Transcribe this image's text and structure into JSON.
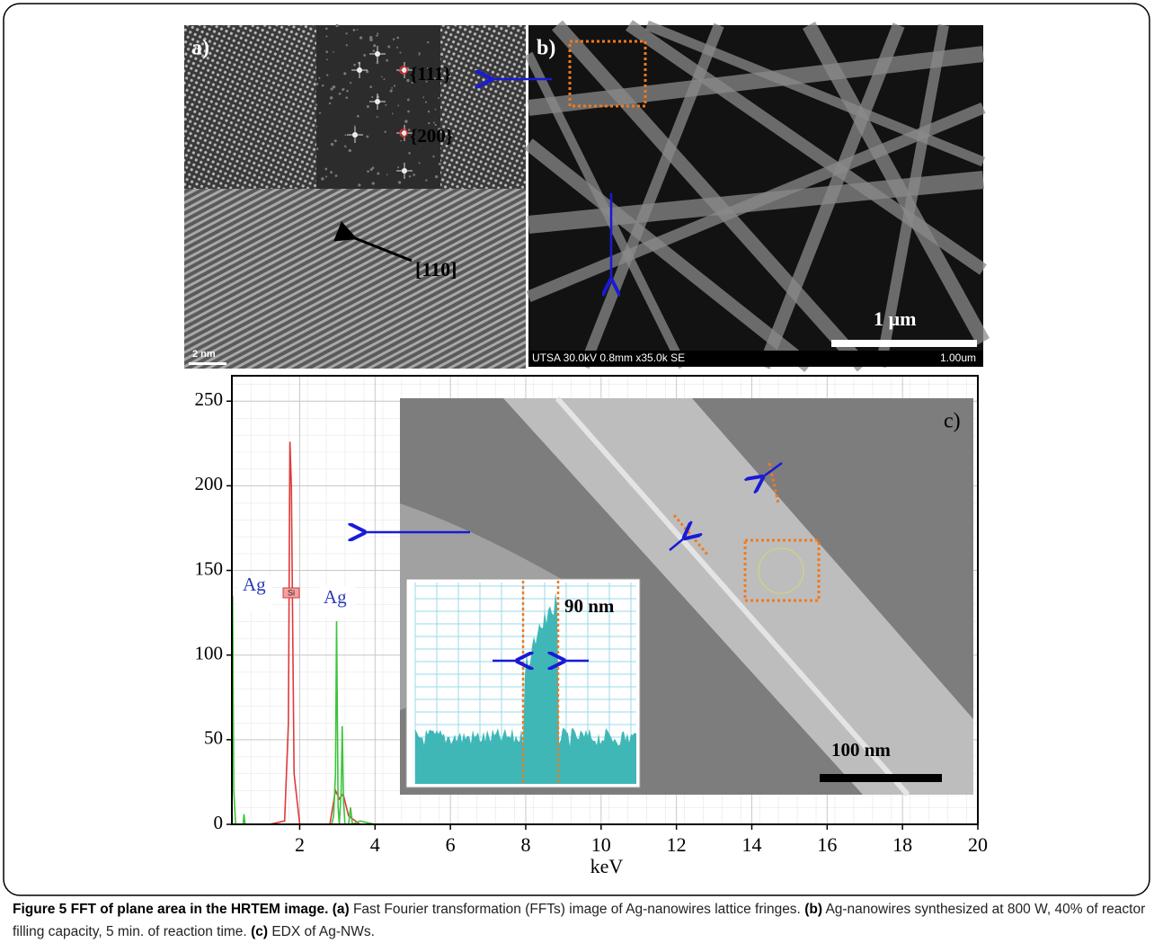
{
  "panels": {
    "a": {
      "label": "a)",
      "spot_1": "{111}",
      "spot_2": "{200}",
      "direction": "[110]",
      "scale": "2 nm"
    },
    "b": {
      "label": "b)",
      "scale": "1 µm",
      "info": "UTSA 30.0kV 0.8mm x35.0k SE",
      "scale_field": "1.00um"
    },
    "c": {
      "label": "c)",
      "width": "90 nm",
      "scale": "100 nm",
      "peak_1": "Ag",
      "peak_2": "Ag",
      "peak_si": "Si"
    }
  },
  "chart_data": {
    "type": "line",
    "x_label": "keV",
    "xlim": [
      0.2,
      20
    ],
    "ylim": [
      0,
      265
    ],
    "xticks": [
      2,
      4,
      6,
      8,
      10,
      12,
      14,
      16,
      18,
      20
    ],
    "yticks": [
      0,
      50,
      100,
      150,
      200,
      250
    ],
    "grid": true,
    "series": [
      {
        "name": "Si",
        "color": "#e03a3a",
        "x": [
          1.2,
          1.6,
          1.7,
          1.74,
          1.78,
          1.85,
          2.0,
          2.8,
          2.95,
          3.05,
          3.15,
          3.3,
          3.6,
          12
        ],
        "values": [
          0,
          2,
          60,
          226,
          200,
          30,
          0,
          0,
          20,
          15,
          18,
          5,
          0,
          0
        ]
      },
      {
        "name": "Ag",
        "color": "#3cc43c",
        "x": [
          0.2,
          0.22,
          0.25,
          0.3,
          0.5,
          0.52,
          0.55,
          0.6,
          2.85,
          2.9,
          2.95,
          2.98,
          3.02,
          3.05,
          3.1,
          3.13,
          3.16,
          3.2,
          3.3,
          3.35,
          3.4,
          3.6,
          4
        ],
        "values": [
          0,
          135,
          20,
          0,
          0,
          6,
          0,
          0,
          0,
          5,
          30,
          120,
          10,
          0,
          20,
          58,
          15,
          0,
          0,
          10,
          0,
          2,
          0
        ]
      }
    ]
  },
  "caption": {
    "title": "Figure 5 FFT of plane area in the HRTEM image.",
    "a_label": "(a)",
    "a_text": "Fast Fourier transformation (FFTs) image of Ag-nanowires lattice fringes.",
    "b_label": "(b)",
    "b_text": "Ag-nanowires synthesized at 800 W, 40% of reactor filling capacity, 5 min. of reaction time.",
    "c_label": "(c)",
    "c_text": "EDX of Ag-NWs."
  }
}
